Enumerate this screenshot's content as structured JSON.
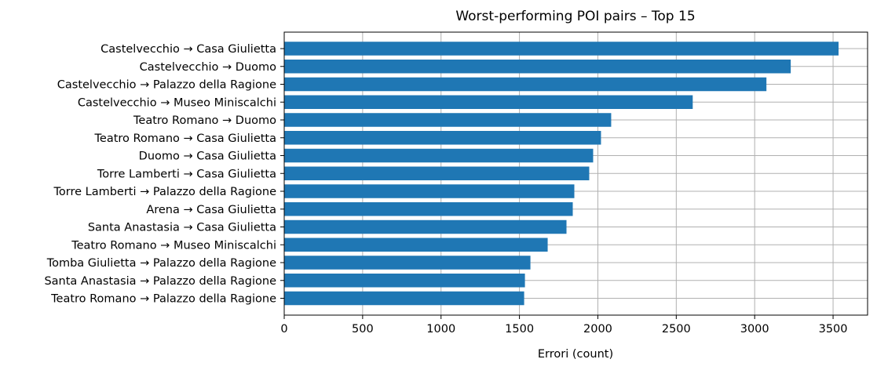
{
  "chart_data": {
    "type": "bar",
    "orientation": "horizontal",
    "title": "Worst-performing POI pairs – Top 15",
    "xlabel": "Errori (count)",
    "ylabel": "",
    "xlim": [
      0,
      3720
    ],
    "xticks": [
      0,
      500,
      1000,
      1500,
      2000,
      2500,
      3000,
      3500
    ],
    "grid": true,
    "bar_color": "#1f77b4",
    "categories": [
      "Castelvecchio → Casa Giulietta",
      "Castelvecchio → Duomo",
      "Castelvecchio → Palazzo della Ragione",
      "Castelvecchio → Museo Miniscalchi",
      "Teatro Romano → Duomo",
      "Teatro Romano → Casa Giulietta",
      "Duomo → Casa Giulietta",
      "Torre Lamberti → Casa Giulietta",
      "Torre Lamberti → Palazzo della Ragione",
      "Arena → Casa Giulietta",
      "Santa Anastasia → Casa Giulietta",
      "Teatro Romano → Museo Miniscalchi",
      "Tomba Giulietta → Palazzo della Ragione",
      "Santa Anastasia → Palazzo della Ragione",
      "Teatro Romano → Palazzo della Ragione"
    ],
    "values": [
      3535,
      3230,
      3075,
      2605,
      2085,
      2020,
      1970,
      1945,
      1850,
      1840,
      1800,
      1680,
      1570,
      1535,
      1530
    ]
  }
}
